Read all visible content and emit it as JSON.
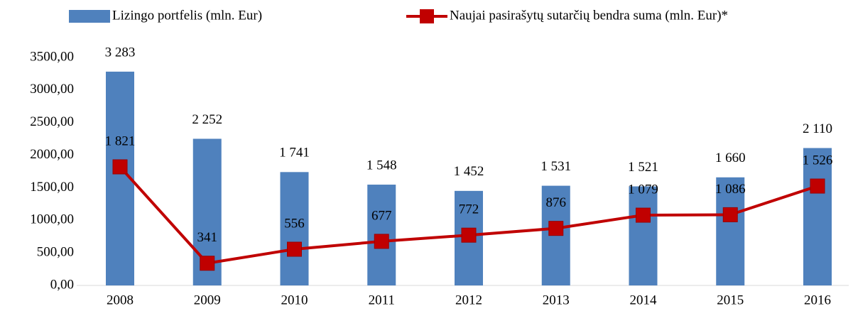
{
  "chart_data": {
    "type": "combo",
    "categories": [
      "2008",
      "2009",
      "2010",
      "2011",
      "2012",
      "2013",
      "2014",
      "2015",
      "2016"
    ],
    "series": [
      {
        "name": "Lizingo portfelis (mln. Eur)",
        "type": "bar",
        "color": "#4f81bd",
        "values": [
          3283,
          2252,
          1741,
          1548,
          1452,
          1531,
          1521,
          1660,
          2110
        ],
        "value_labels": [
          "3 283",
          "2 252",
          "1 741",
          "1 548",
          "1 452",
          "1 531",
          "1 521",
          "1 660",
          "2 110"
        ]
      },
      {
        "name": "Naujai pasirašytų sutarčių bendra suma (mln.  Eur)*",
        "type": "line",
        "color": "#c00000",
        "values": [
          1821,
          341,
          556,
          677,
          772,
          876,
          1079,
          1086,
          1526
        ],
        "value_labels": [
          "1 821",
          "341",
          "556",
          "677",
          "772",
          "876",
          "1 079",
          "1 086",
          "1 526"
        ]
      }
    ],
    "ylim": [
      0,
      3500
    ],
    "yticks": [
      {
        "value": 0,
        "label": "0,00"
      },
      {
        "value": 500,
        "label": "500,00"
      },
      {
        "value": 1000,
        "label": "1000,00"
      },
      {
        "value": 1500,
        "label": "1500,00"
      },
      {
        "value": 2000,
        "label": "2000,00"
      },
      {
        "value": 2500,
        "label": "2500,00"
      },
      {
        "value": 3000,
        "label": "3000,00"
      },
      {
        "value": 3500,
        "label": "3500,00"
      }
    ],
    "grid": false,
    "legend": "top"
  }
}
